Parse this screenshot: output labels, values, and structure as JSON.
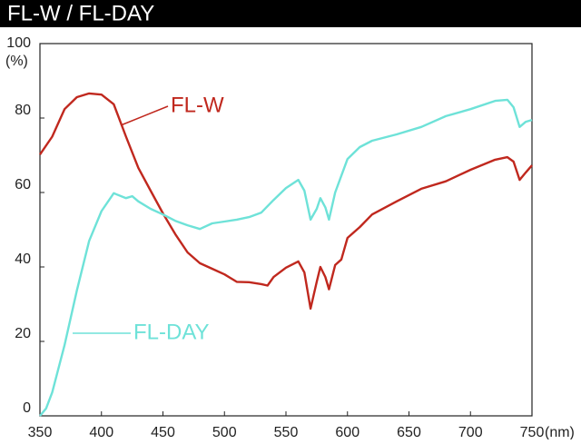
{
  "chart_data": {
    "type": "line",
    "title": "FL-W / FL-DAY",
    "x_label": "(nm)",
    "y_label": "(%)",
    "xlim": [
      350,
      750
    ],
    "xticks": [
      350,
      400,
      450,
      500,
      550,
      600,
      650,
      700,
      750
    ],
    "ylim": [
      0,
      100
    ],
    "yticks": [
      0,
      20,
      40,
      60,
      80,
      100
    ],
    "grid": false,
    "series": [
      {
        "name": "FL-W",
        "color": "#c0281e",
        "x": [
          350,
          360,
          370,
          380,
          390,
          400,
          410,
          420,
          430,
          440,
          450,
          460,
          470,
          480,
          490,
          500,
          510,
          520,
          530,
          535,
          540,
          550,
          560,
          565,
          570,
          575,
          578,
          582,
          585,
          590,
          595,
          600,
          610,
          620,
          640,
          660,
          680,
          700,
          720,
          730,
          735,
          740,
          745,
          750
        ],
        "values": [
          70.2,
          75,
          82.4,
          85.6,
          86.6,
          86.3,
          83.7,
          75,
          66.6,
          60.5,
          54.4,
          48.8,
          43.9,
          41,
          39.5,
          38,
          36,
          35.9,
          35.4,
          35,
          37.3,
          39.8,
          41.5,
          38.5,
          28.8,
          36,
          40,
          37.3,
          34,
          40.5,
          42,
          47.8,
          50.7,
          54.1,
          57.6,
          61,
          63,
          66.1,
          68.8,
          69.5,
          68.3,
          63.4,
          65.4,
          67.3
        ]
      },
      {
        "name": "FL-DAY",
        "color": "#6ee2d8",
        "x": [
          350,
          355,
          360,
          370,
          380,
          390,
          400,
          410,
          420,
          425,
          430,
          440,
          450,
          460,
          470,
          480,
          490,
          500,
          510,
          520,
          530,
          540,
          550,
          560,
          565,
          570,
          575,
          578,
          582,
          585,
          590,
          600,
          610,
          620,
          640,
          660,
          680,
          700,
          720,
          730,
          735,
          740,
          745,
          750
        ],
        "values": [
          0,
          2,
          6.3,
          19,
          33.7,
          47,
          55,
          59.8,
          58.5,
          59,
          57.6,
          55.6,
          54.1,
          52.4,
          51.2,
          50.2,
          51.7,
          52.2,
          52.7,
          53.4,
          54.6,
          58,
          61.2,
          63.4,
          60.5,
          52.7,
          55.6,
          58.5,
          56,
          52.7,
          60,
          69,
          72.2,
          73.9,
          75.6,
          77.6,
          80.5,
          82.4,
          84.6,
          84.9,
          82.9,
          77.6,
          79,
          79.5
        ]
      }
    ]
  }
}
